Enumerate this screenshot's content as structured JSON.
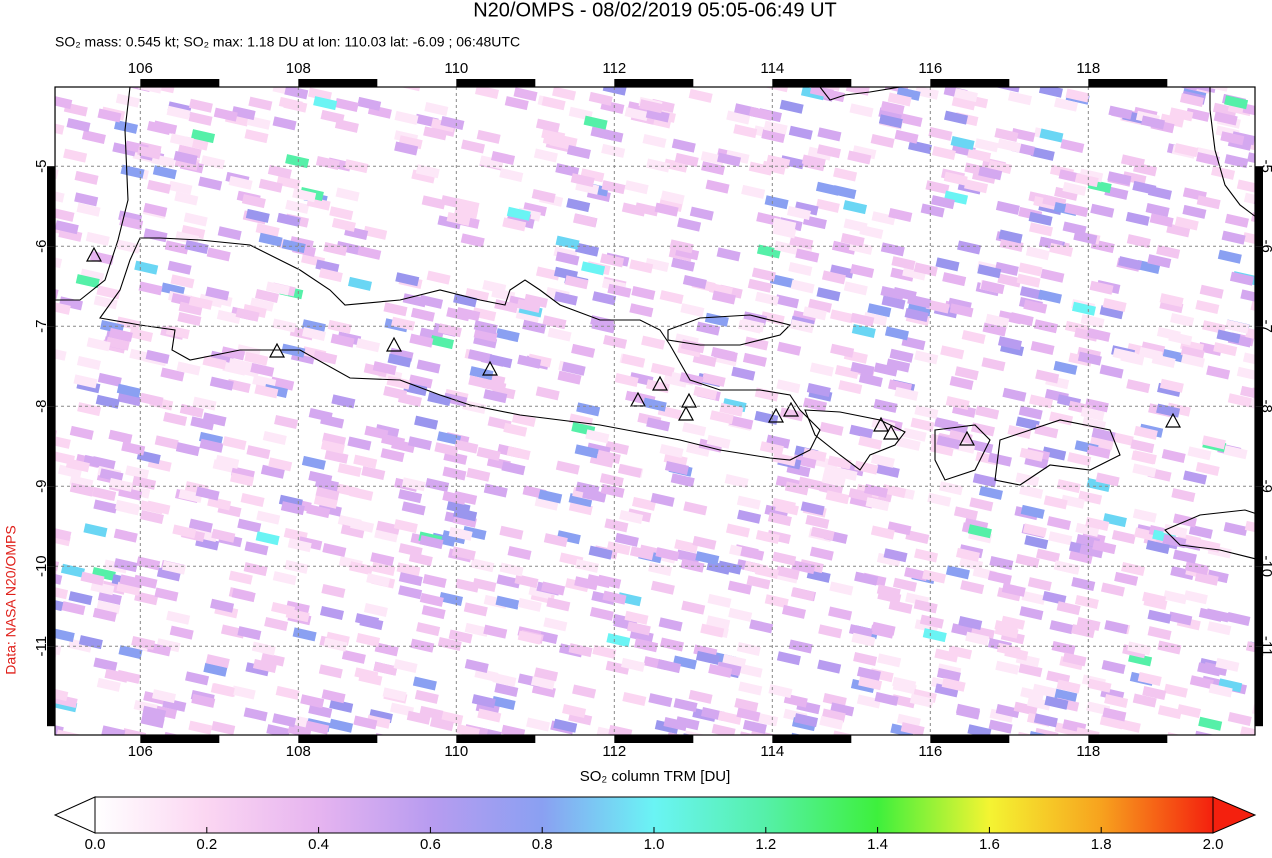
{
  "chart_data": {
    "type": "map",
    "title": "N20/OMPS - 08/02/2019 05:05-06:49 UT",
    "subtitle": "SO₂ mass: 0.545 kt; SO₂ max: 1.18 DU at lon: 110.03 lat: -6.09 ; 06:48UTC",
    "side_label": "Data: NASA N20/OMPS",
    "xlim": [
      104.92,
      120.11
    ],
    "xticks": [
      106,
      108,
      110,
      112,
      114,
      116,
      118
    ],
    "ylim": [
      -12.11,
      -4.01
    ],
    "yticks": [
      -5,
      -6,
      -7,
      -8,
      -9,
      -10,
      -11
    ],
    "grid": true,
    "colorbar": {
      "label": "SO₂ column TRM [DU]",
      "lim": [
        0,
        2
      ],
      "ticks": [
        {
          "value": 0,
          "label": "0.0"
        },
        {
          "value": 0.2,
          "label": "0.2"
        },
        {
          "value": 0.4,
          "label": "0.4"
        },
        {
          "value": 0.6,
          "label": "0.6"
        },
        {
          "value": 0.8,
          "label": "0.8"
        },
        {
          "value": 1,
          "label": "1.0"
        },
        {
          "value": 1.2,
          "label": "1.2"
        },
        {
          "value": 1.4,
          "label": "1.4"
        },
        {
          "value": 1.6,
          "label": "1.6"
        },
        {
          "value": 1.8,
          "label": "1.8"
        },
        {
          "value": 2,
          "label": "2.0"
        }
      ]
    }
  }
}
